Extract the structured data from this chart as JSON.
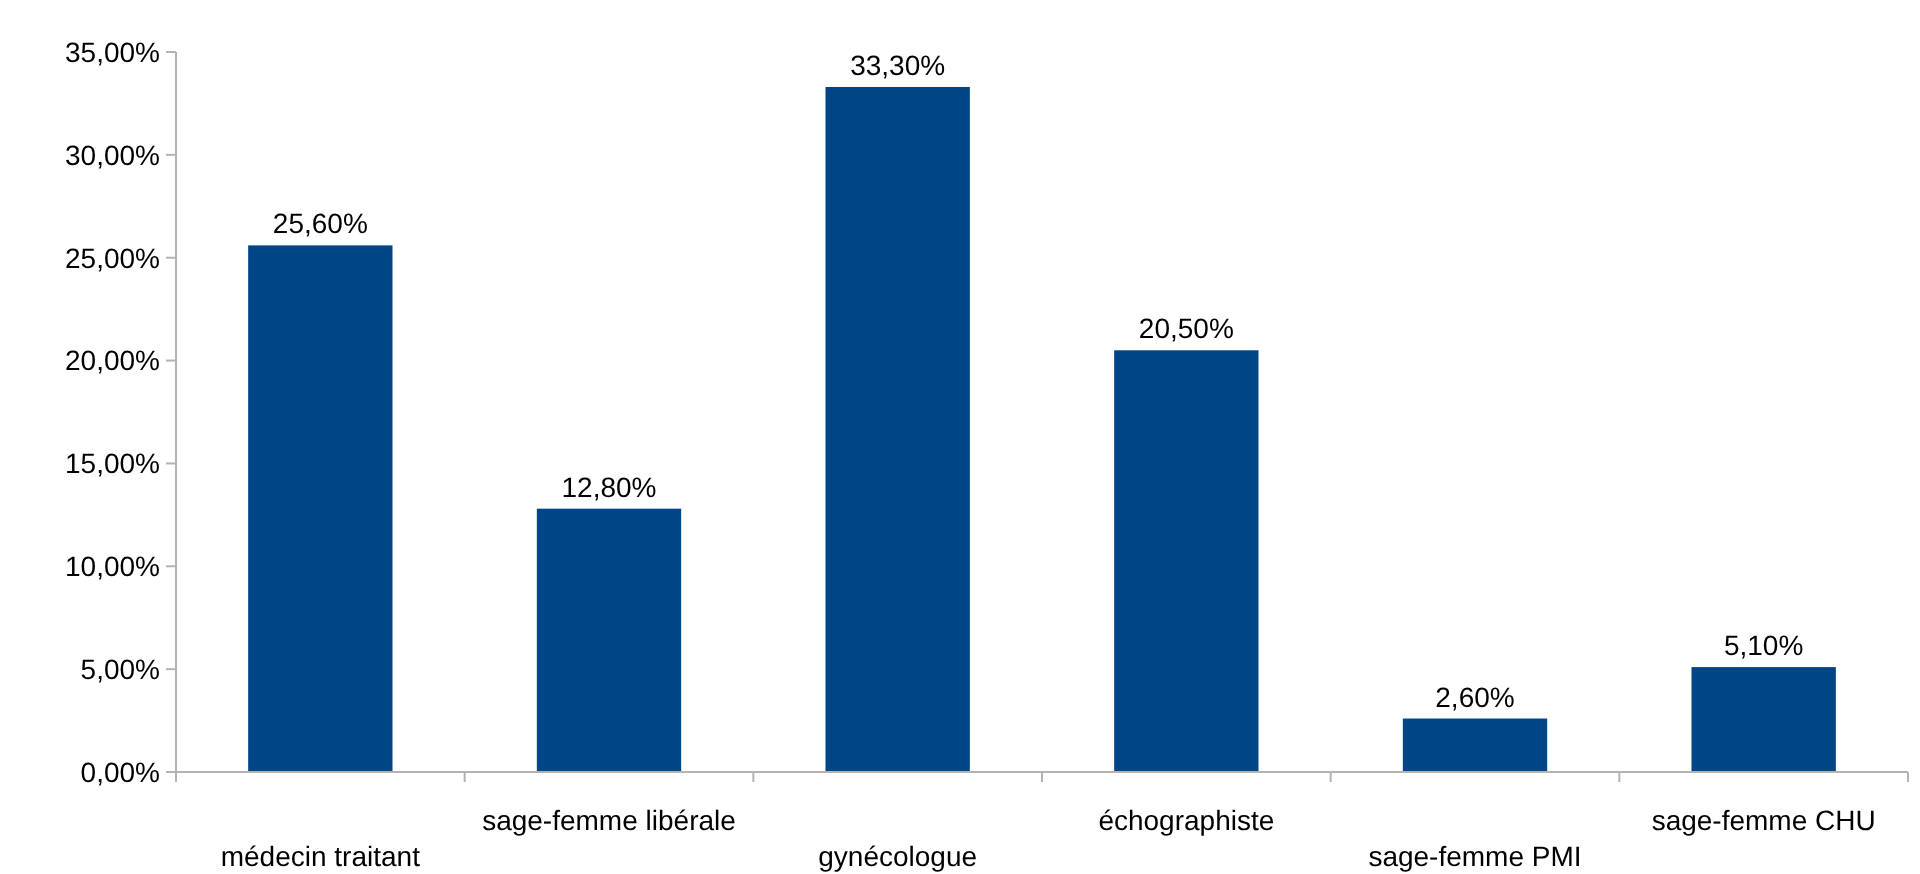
{
  "chart_data": {
    "type": "bar",
    "categories": [
      "médecin traitant",
      "sage-femme libérale",
      "gynécologue",
      "échographiste",
      "sage-femme PMI",
      "sage-femme CHU"
    ],
    "values": [
      25.6,
      12.8,
      33.3,
      20.5,
      2.6,
      5.1
    ],
    "value_labels": [
      "25,60%",
      "12,80%",
      "33,30%",
      "20,50%",
      "2,60%",
      "5,10%"
    ],
    "color": "#004586",
    "ylim": [
      0,
      35
    ],
    "yticks": [
      {
        "value": 0,
        "label": "0,00%"
      },
      {
        "value": 5,
        "label": "5,00%"
      },
      {
        "value": 10,
        "label": "10,00%"
      },
      {
        "value": 15,
        "label": "15,00%"
      },
      {
        "value": 20,
        "label": "20,00%"
      },
      {
        "value": 25,
        "label": "25,00%"
      },
      {
        "value": 30,
        "label": "30,00%"
      },
      {
        "value": 35,
        "label": "35,00%"
      }
    ],
    "grid": false
  }
}
